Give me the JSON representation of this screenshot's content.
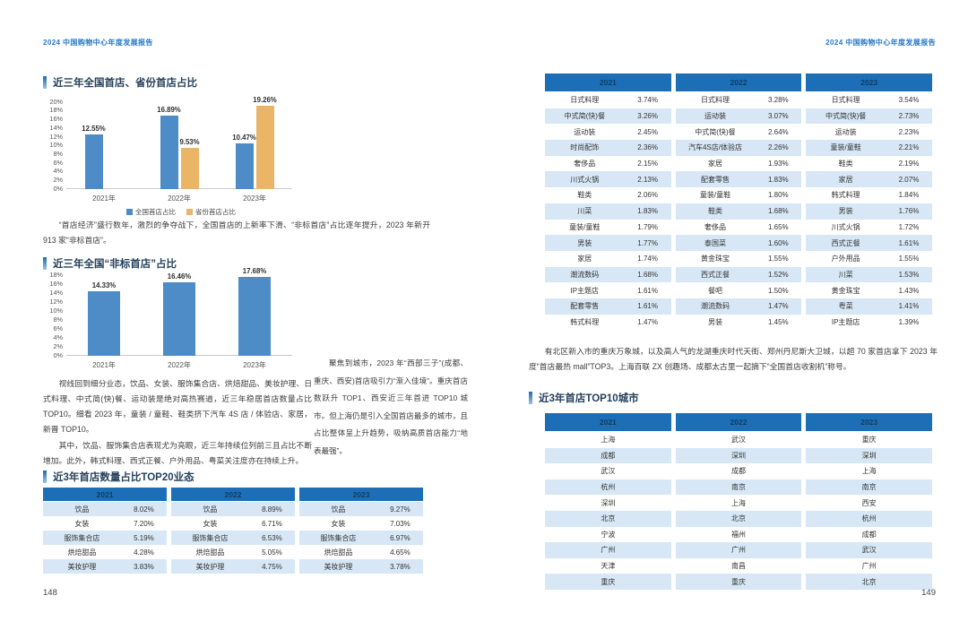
{
  "report_header": "2024 中国购物中心年度发展报告",
  "colors": {
    "accent_blue": "#2878C8",
    "table_header_blue": "#1C6FB7",
    "stripe_blue": "#D7E7F5",
    "bar_blue": "#4D8CC6",
    "bar_orange": "#EBB567"
  },
  "charts": {
    "national_first_store": {
      "type": "bar",
      "title": "近三年全国首店、省份首店占比",
      "categories": [
        "2021年",
        "2022年",
        "2023年"
      ],
      "series": [
        {
          "name": "全国首店占比",
          "color": "#4D8CC6",
          "values": [
            12.55,
            16.89,
            10.47
          ]
        },
        {
          "name": "省份首店占比",
          "color": "#EBB567",
          "values": [
            null,
            9.53,
            19.26
          ]
        }
      ],
      "ymax": 20,
      "ystep": 2,
      "legend": true,
      "ylabel_suffix": "%"
    },
    "nonstandard_first_store": {
      "type": "bar",
      "title": "近三年全国“非标首店”占比",
      "categories": [
        "2021年",
        "2022年",
        "2023年"
      ],
      "series": [
        {
          "name": "非标首店占比",
          "color": "#4D8CC6",
          "values": [
            14.33,
            16.46,
            17.68
          ]
        }
      ],
      "ymax": 18,
      "ystep": 2,
      "legend": false,
      "ylabel_suffix": "%"
    }
  },
  "left_page": {
    "page_number": "148",
    "section1_title": "近三年全国首店、省份首店占比",
    "paragraph1": "“首店经济”盛行数年，激烈的争夺战下，全国首店的上新率下滑、“非标首店”占比逐年提升，2023 年新开 913 家“非标首店”。",
    "section2_title": "近三年全国“非标首店”占比",
    "paragraph2a": "视线回到细分业态，饮品、女装、服饰集合店、烘焙甜品、美妆护理、日式料理、中式简(快)餐、运动装是绝对高热赛道，近三年稳居首店数量占比 TOP10。细看 2023 年，童装 / 童鞋、鞋类挤下汽车 4S 店 / 体验店、家居，新晋 TOP10。",
    "paragraph2b": "其中，饮品、服饰集合店表现尤为亮眼，近三年持续位列前三且占比不断增加。此外，韩式料理、西式正餐、户外用品、粤菜关注度亦在持续上升。",
    "sidebar_paragraph": "聚焦到城市，2023 年“西部三子”(成都、重庆、西安)首店吸引力“渐入佳境”。重庆首店数跃升 TOP1、西安近三年首进 TOP10 城市。但上海仍是引入全国首店最多的城市，且占比整体呈上升趋势，吸纳高质首店能力“地表最强”。",
    "section3_title": "近3年首店数量占比TOP20业态",
    "top20_table": {
      "headers": [
        "2021",
        "2022",
        "2023"
      ],
      "rows": [
        [
          [
            "饮品",
            "8.02%"
          ],
          [
            "饮品",
            "8.89%"
          ],
          [
            "饮品",
            "9.27%"
          ]
        ],
        [
          [
            "女装",
            "7.20%"
          ],
          [
            "女装",
            "6.71%"
          ],
          [
            "女装",
            "7.03%"
          ]
        ],
        [
          [
            "服饰集合店",
            "5.19%"
          ],
          [
            "服饰集合店",
            "6.53%"
          ],
          [
            "服饰集合店",
            "6.97%"
          ]
        ],
        [
          [
            "烘焙甜品",
            "4.28%"
          ],
          [
            "烘焙甜品",
            "5.05%"
          ],
          [
            "烘焙甜品",
            "4.65%"
          ]
        ],
        [
          [
            "美妆护理",
            "3.83%"
          ],
          [
            "美妆护理",
            "4.75%"
          ],
          [
            "美妆护理",
            "3.78%"
          ]
        ]
      ]
    }
  },
  "right_page": {
    "page_number": "149",
    "top20_table": {
      "headers": [
        "2021",
        "2022",
        "2023"
      ],
      "rows": [
        [
          [
            "日式料理",
            "3.74%"
          ],
          [
            "日式料理",
            "3.28%"
          ],
          [
            "日式料理",
            "3.54%"
          ]
        ],
        [
          [
            "中式简(快)餐",
            "3.26%"
          ],
          [
            "运动装",
            "3.07%"
          ],
          [
            "中式简(快)餐",
            "2.73%"
          ]
        ],
        [
          [
            "运动装",
            "2.45%"
          ],
          [
            "中式简(快)餐",
            "2.64%"
          ],
          [
            "运动装",
            "2.23%"
          ]
        ],
        [
          [
            "时尚配饰",
            "2.36%"
          ],
          [
            "汽车4S店/体验店",
            "2.26%"
          ],
          [
            "童装/童鞋",
            "2.21%"
          ]
        ],
        [
          [
            "奢侈品",
            "2.15%"
          ],
          [
            "家居",
            "1.93%"
          ],
          [
            "鞋类",
            "2.19%"
          ]
        ],
        [
          [
            "川式火锅",
            "2.13%"
          ],
          [
            "配套零售",
            "1.83%"
          ],
          [
            "家居",
            "2.07%"
          ]
        ],
        [
          [
            "鞋类",
            "2.06%"
          ],
          [
            "童装/童鞋",
            "1.80%"
          ],
          [
            "韩式料理",
            "1.84%"
          ]
        ],
        [
          [
            "川菜",
            "1.83%"
          ],
          [
            "鞋类",
            "1.68%"
          ],
          [
            "男装",
            "1.76%"
          ]
        ],
        [
          [
            "童装/童鞋",
            "1.79%"
          ],
          [
            "奢侈品",
            "1.65%"
          ],
          [
            "川式火锅",
            "1.72%"
          ]
        ],
        [
          [
            "男装",
            "1.77%"
          ],
          [
            "泰国菜",
            "1.60%"
          ],
          [
            "西式正餐",
            "1.61%"
          ]
        ],
        [
          [
            "家居",
            "1.74%"
          ],
          [
            "黄金珠宝",
            "1.55%"
          ],
          [
            "户外用品",
            "1.55%"
          ]
        ],
        [
          [
            "潮流数码",
            "1.68%"
          ],
          [
            "西式正餐",
            "1.52%"
          ],
          [
            "川菜",
            "1.53%"
          ]
        ],
        [
          [
            "IP主题店",
            "1.61%"
          ],
          [
            "餐吧",
            "1.50%"
          ],
          [
            "黄金珠宝",
            "1.43%"
          ]
        ],
        [
          [
            "配套零售",
            "1.61%"
          ],
          [
            "潮流数码",
            "1.47%"
          ],
          [
            "粤菜",
            "1.41%"
          ]
        ],
        [
          [
            "韩式料理",
            "1.47%"
          ],
          [
            "男装",
            "1.45%"
          ],
          [
            "IP主题店",
            "1.39%"
          ]
        ]
      ]
    },
    "paragraph": "有北区新入市的重庆万象城，以及高人气的龙湖重庆时代天街、郑州丹尼斯大卫城，以超 70 家首店拿下 2023 年度“首店最热 mall”TOP3。上海百联 ZX 创趣场、成都太古里一起摘下“全国首店收割机”称号。",
    "cities_section_title": "近3年首店TOP10城市",
    "cities_table": {
      "headers": [
        "2021",
        "2022",
        "2023"
      ],
      "rows": [
        [
          "上海",
          "武汉",
          "重庆"
        ],
        [
          "成都",
          "深圳",
          "深圳"
        ],
        [
          "武汉",
          "成都",
          "上海"
        ],
        [
          "杭州",
          "南京",
          "南京"
        ],
        [
          "深圳",
          "上海",
          "西安"
        ],
        [
          "北京",
          "北京",
          "杭州"
        ],
        [
          "宁波",
          "福州",
          "成都"
        ],
        [
          "广州",
          "广州",
          "武汉"
        ],
        [
          "天津",
          "南昌",
          "广州"
        ],
        [
          "重庆",
          "重庆",
          "北京"
        ]
      ]
    }
  }
}
